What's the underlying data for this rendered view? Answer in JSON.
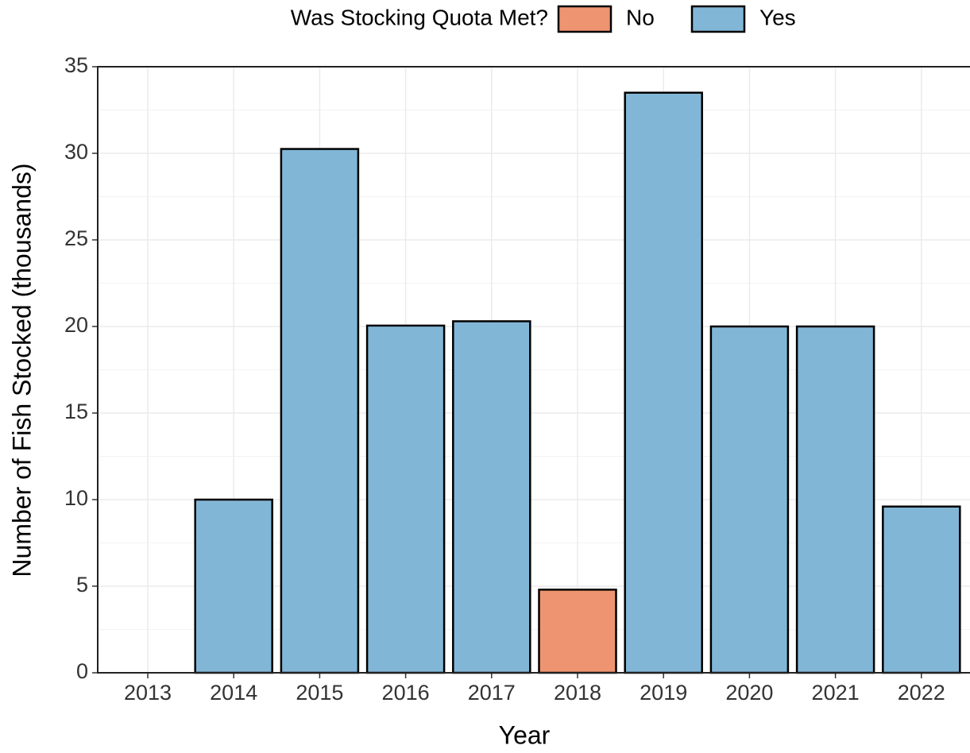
{
  "chart_data": {
    "type": "bar",
    "legend_title": "Was Stocking Quota Met?",
    "x_label": "Year",
    "y_label": "Number of Fish Stocked (thousands)",
    "categories": [
      "2013",
      "2014",
      "2015",
      "2016",
      "2017",
      "2018",
      "2019",
      "2020",
      "2021",
      "2022"
    ],
    "series": [
      {
        "name": "No",
        "color": "#ef9470",
        "values": [
          0,
          null,
          null,
          null,
          null,
          4.8,
          null,
          null,
          null,
          null
        ]
      },
      {
        "name": "Yes",
        "color": "#82b6d6",
        "values": [
          null,
          10,
          30.25,
          20.05,
          20.3,
          null,
          33.5,
          20,
          20,
          9.6
        ]
      }
    ],
    "ylim": [
      0,
      35
    ],
    "yticks": [
      0,
      5,
      10,
      15,
      20,
      25,
      30,
      35
    ],
    "grid": true,
    "legend_position": "top"
  }
}
